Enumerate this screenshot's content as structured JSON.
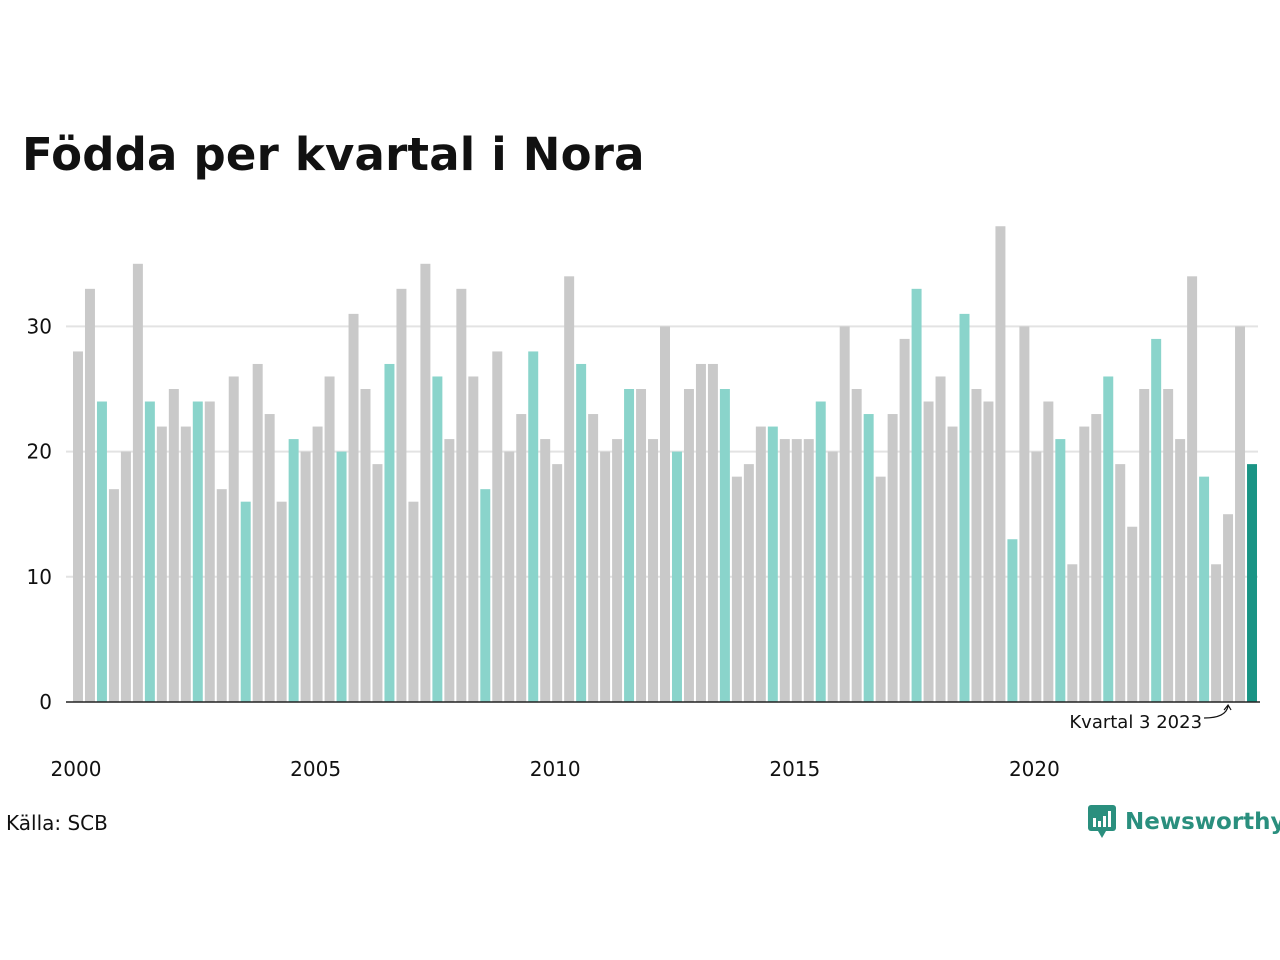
{
  "chart_data": {
    "type": "bar",
    "title": "Födda per kvartal i Nora",
    "xlabel": "",
    "ylabel": "",
    "ylim": [
      0,
      38
    ],
    "yticks": [
      0,
      10,
      20,
      30
    ],
    "xtick_labels": [
      "2000",
      "2005",
      "2010",
      "2015",
      "2020"
    ],
    "start_year": 2000,
    "quarters_per_year": 4,
    "grid": true,
    "values": [
      28,
      33,
      24,
      17,
      20,
      35,
      24,
      22,
      25,
      22,
      24,
      24,
      17,
      26,
      16,
      27,
      23,
      16,
      21,
      20,
      22,
      26,
      20,
      31,
      25,
      19,
      27,
      33,
      16,
      35,
      26,
      21,
      33,
      26,
      17,
      28,
      20,
      23,
      28,
      21,
      19,
      34,
      27,
      23,
      20,
      21,
      25,
      25,
      21,
      30,
      20,
      25,
      27,
      27,
      25,
      18,
      19,
      22,
      22,
      21,
      21,
      21,
      24,
      20,
      30,
      25,
      23,
      18,
      23,
      29,
      33,
      24,
      26,
      22,
      31,
      25,
      24,
      38,
      13,
      30,
      20,
      24,
      21,
      11,
      22,
      23,
      26,
      19,
      14,
      25,
      29,
      25,
      21,
      34,
      18,
      11,
      15,
      30,
      19
    ],
    "highlight_quarter": 3,
    "colors": {
      "default": "#c9c9c9",
      "highlight": "#8ad4cb",
      "latest": "#1a9485"
    },
    "annotation": {
      "text": "Kvartal 3 2023"
    }
  },
  "source": "Källa: SCB",
  "brand": {
    "name": "Newsworthy",
    "logo_icon": "newsworthy-chart-bubble-icon",
    "color": "#2a8f7e"
  }
}
